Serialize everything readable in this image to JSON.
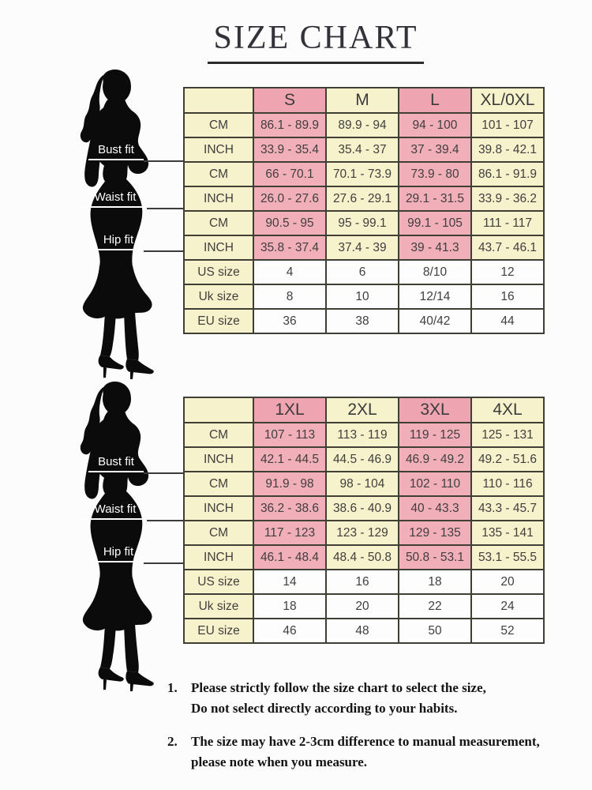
{
  "title": "SIZE CHART",
  "figure": {
    "description": "black silhouette of woman in fitted dress and high heels",
    "fit_labels": [
      "Bust fit",
      "Waist fit",
      "Hip fit"
    ]
  },
  "tables": [
    {
      "name": "sizes S to XL/0XL",
      "corner_label": "",
      "columns": [
        "S",
        "M",
        "L",
        "XL/0XL"
      ],
      "rows": [
        {
          "label": "CM",
          "values": [
            "86.1 - 89.9",
            "89.9 - 94",
            "94 - 100",
            "101 - 107"
          ]
        },
        {
          "label": "INCH",
          "values": [
            "33.9 - 35.4",
            "35.4 - 37",
            "37 - 39.4",
            "39.8 - 42.1"
          ]
        },
        {
          "label": "CM",
          "values": [
            "66 - 70.1",
            "70.1 - 73.9",
            "73.9 - 80",
            "86.1 - 91.9"
          ]
        },
        {
          "label": "INCH",
          "values": [
            "26.0 - 27.6",
            "27.6 - 29.1",
            "29.1 - 31.5",
            "33.9 - 36.2"
          ]
        },
        {
          "label": "CM",
          "values": [
            "90.5 - 95",
            "95 - 99.1",
            "99.1 - 105",
            "111 - 117"
          ]
        },
        {
          "label": "INCH",
          "values": [
            "35.8 - 37.4",
            "37.4 - 39",
            "39 - 41.3",
            "43.7 - 46.1"
          ]
        },
        {
          "label": "US size",
          "values": [
            "4",
            "6",
            "8/10",
            "12"
          ]
        },
        {
          "label": "Uk size",
          "values": [
            "8",
            "10",
            "12/14",
            "16"
          ]
        },
        {
          "label": "EU size",
          "values": [
            "36",
            "38",
            "40/42",
            "44"
          ]
        }
      ]
    },
    {
      "name": "sizes 1XL to 4XL",
      "corner_label": "",
      "columns": [
        "1XL",
        "2XL",
        "3XL",
        "4XL"
      ],
      "rows": [
        {
          "label": "CM",
          "values": [
            "107 - 113",
            "113 - 119",
            "119 - 125",
            "125 - 131"
          ]
        },
        {
          "label": "INCH",
          "values": [
            "42.1 - 44.5",
            "44.5 - 46.9",
            "46.9 - 49.2",
            "49.2 - 51.6"
          ]
        },
        {
          "label": "CM",
          "values": [
            "91.9 - 98",
            "98 - 104",
            "102 - 110",
            "110 - 116"
          ]
        },
        {
          "label": "INCH",
          "values": [
            "36.2 - 38.6",
            "38.6 - 40.9",
            "40 - 43.3",
            "43.3 - 45.7"
          ]
        },
        {
          "label": "CM",
          "values": [
            "117 - 123",
            "123 - 129",
            "129 - 135",
            "135 - 141"
          ]
        },
        {
          "label": "INCH",
          "values": [
            "46.1 - 48.4",
            "48.4 - 50.8",
            "50.8 - 53.1",
            "53.1 - 55.5"
          ]
        },
        {
          "label": "US size",
          "values": [
            "14",
            "16",
            "18",
            "20"
          ]
        },
        {
          "label": "Uk size",
          "values": [
            "18",
            "20",
            "22",
            "24"
          ]
        },
        {
          "label": "EU size",
          "values": [
            "46",
            "48",
            "50",
            "52"
          ]
        }
      ]
    }
  ],
  "notes": [
    {
      "number": "1.",
      "lines": [
        "Please strictly follow the size chart to select the size,",
        "Do not select directly according to your habits."
      ]
    },
    {
      "number": "2.",
      "lines": [
        "The size may have 2-3cm difference  to manual measurement,",
        "please note when you measure."
      ]
    }
  ],
  "colors": {
    "header_pink": "#eea4b1",
    "cell_pink": "#f0afb9",
    "cell_yellow": "#f6f2cc",
    "cell_white": "#fdfdfd",
    "table_border": "#3f3f35",
    "silhouette": "#0b0b0b"
  }
}
